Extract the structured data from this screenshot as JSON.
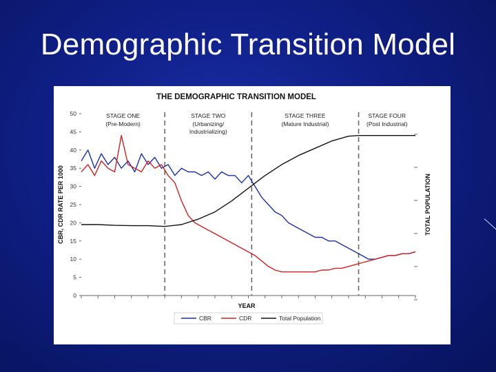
{
  "slide": {
    "title": "Demographic Transition Model",
    "background_color": "#0f1f86"
  },
  "chart_data": {
    "type": "line",
    "title": "THE DEMOGRAPHIC TRANSITION MODEL",
    "xlabel": "YEAR",
    "ylabel": "CBR, CDR RATE PER 1000",
    "right_label": "TOTAL POPULATION",
    "ylim": [
      0,
      50
    ],
    "y_ticks": [
      "50",
      "45",
      "40",
      "35",
      "30",
      "25",
      "20",
      "15",
      "10",
      "5",
      "0"
    ],
    "x_range": [
      0,
      100
    ],
    "stage_dividers": [
      25,
      51,
      83
    ],
    "stages": [
      {
        "name": "STAGE ONE",
        "sub": [
          "(Pre-Modern)"
        ]
      },
      {
        "name": "STAGE TWO",
        "sub": [
          "(Urbanizing/",
          "Industrializing)"
        ]
      },
      {
        "name": "STAGE THREE",
        "sub": [
          "(Mature Industrial)"
        ]
      },
      {
        "name": "STAGE FOUR",
        "sub": [
          "(Post Industrial)"
        ]
      }
    ],
    "legend": [
      {
        "label": "CBR",
        "color": "#1a2fb0"
      },
      {
        "label": "CDR",
        "color": "#d42020"
      },
      {
        "label": "Total Population",
        "color": "#111111"
      }
    ],
    "series": [
      {
        "name": "CBR",
        "color": "#1a2fb0",
        "x": [
          0,
          2,
          4,
          6,
          8,
          10,
          12,
          14,
          16,
          18,
          20,
          22,
          24,
          26,
          28,
          30,
          32,
          34,
          36,
          38,
          40,
          42,
          44,
          46,
          48,
          50,
          52,
          54,
          56,
          58,
          60,
          62,
          64,
          66,
          68,
          70,
          72,
          74,
          76,
          78,
          80,
          82,
          84,
          86,
          88,
          90,
          92,
          94,
          96,
          98,
          100
        ],
        "y": [
          37,
          40,
          35,
          39,
          36,
          38,
          35,
          37,
          34,
          39,
          36,
          38,
          35,
          36,
          33,
          35,
          34,
          34,
          33,
          34,
          32,
          34,
          33,
          33,
          31,
          33,
          30,
          27,
          25,
          23,
          22,
          20,
          19,
          18,
          17,
          16,
          16,
          15,
          15,
          14,
          13,
          12,
          11,
          10,
          10,
          10.5,
          11,
          11,
          11.5,
          11.5,
          12
        ]
      },
      {
        "name": "CDR",
        "color": "#d42020",
        "x": [
          0,
          2,
          4,
          6,
          8,
          10,
          12,
          14,
          16,
          18,
          20,
          22,
          24,
          26,
          28,
          30,
          32,
          34,
          36,
          38,
          40,
          42,
          44,
          46,
          48,
          50,
          52,
          54,
          56,
          58,
          60,
          62,
          64,
          66,
          68,
          70,
          72,
          74,
          76,
          78,
          80,
          82,
          84,
          86,
          88,
          90,
          92,
          94,
          96,
          98,
          100
        ],
        "y": [
          34,
          36,
          33,
          37,
          35,
          34,
          44,
          36,
          35,
          34,
          37,
          35,
          36,
          33,
          31,
          26,
          22,
          20,
          19,
          18,
          17,
          16,
          15,
          14,
          13,
          12,
          11,
          9.5,
          8,
          7,
          6.5,
          6.5,
          6.5,
          6.5,
          6.5,
          6.5,
          7,
          7,
          7.5,
          7.5,
          8,
          8.5,
          9,
          9.5,
          10,
          10.5,
          11,
          11,
          11.5,
          11.5,
          12
        ]
      },
      {
        "name": "Total Population",
        "color": "#111111",
        "x": [
          0,
          5,
          10,
          15,
          20,
          25,
          30,
          35,
          40,
          45,
          50,
          55,
          60,
          65,
          70,
          75,
          80,
          83,
          86,
          90,
          95,
          100
        ],
        "y": [
          19.5,
          19.5,
          19.3,
          19.2,
          19.2,
          19,
          19.5,
          21,
          23,
          26,
          29.5,
          33,
          36,
          38.5,
          40.5,
          42.5,
          43.8,
          44,
          44,
          44,
          44,
          44
        ]
      }
    ]
  }
}
